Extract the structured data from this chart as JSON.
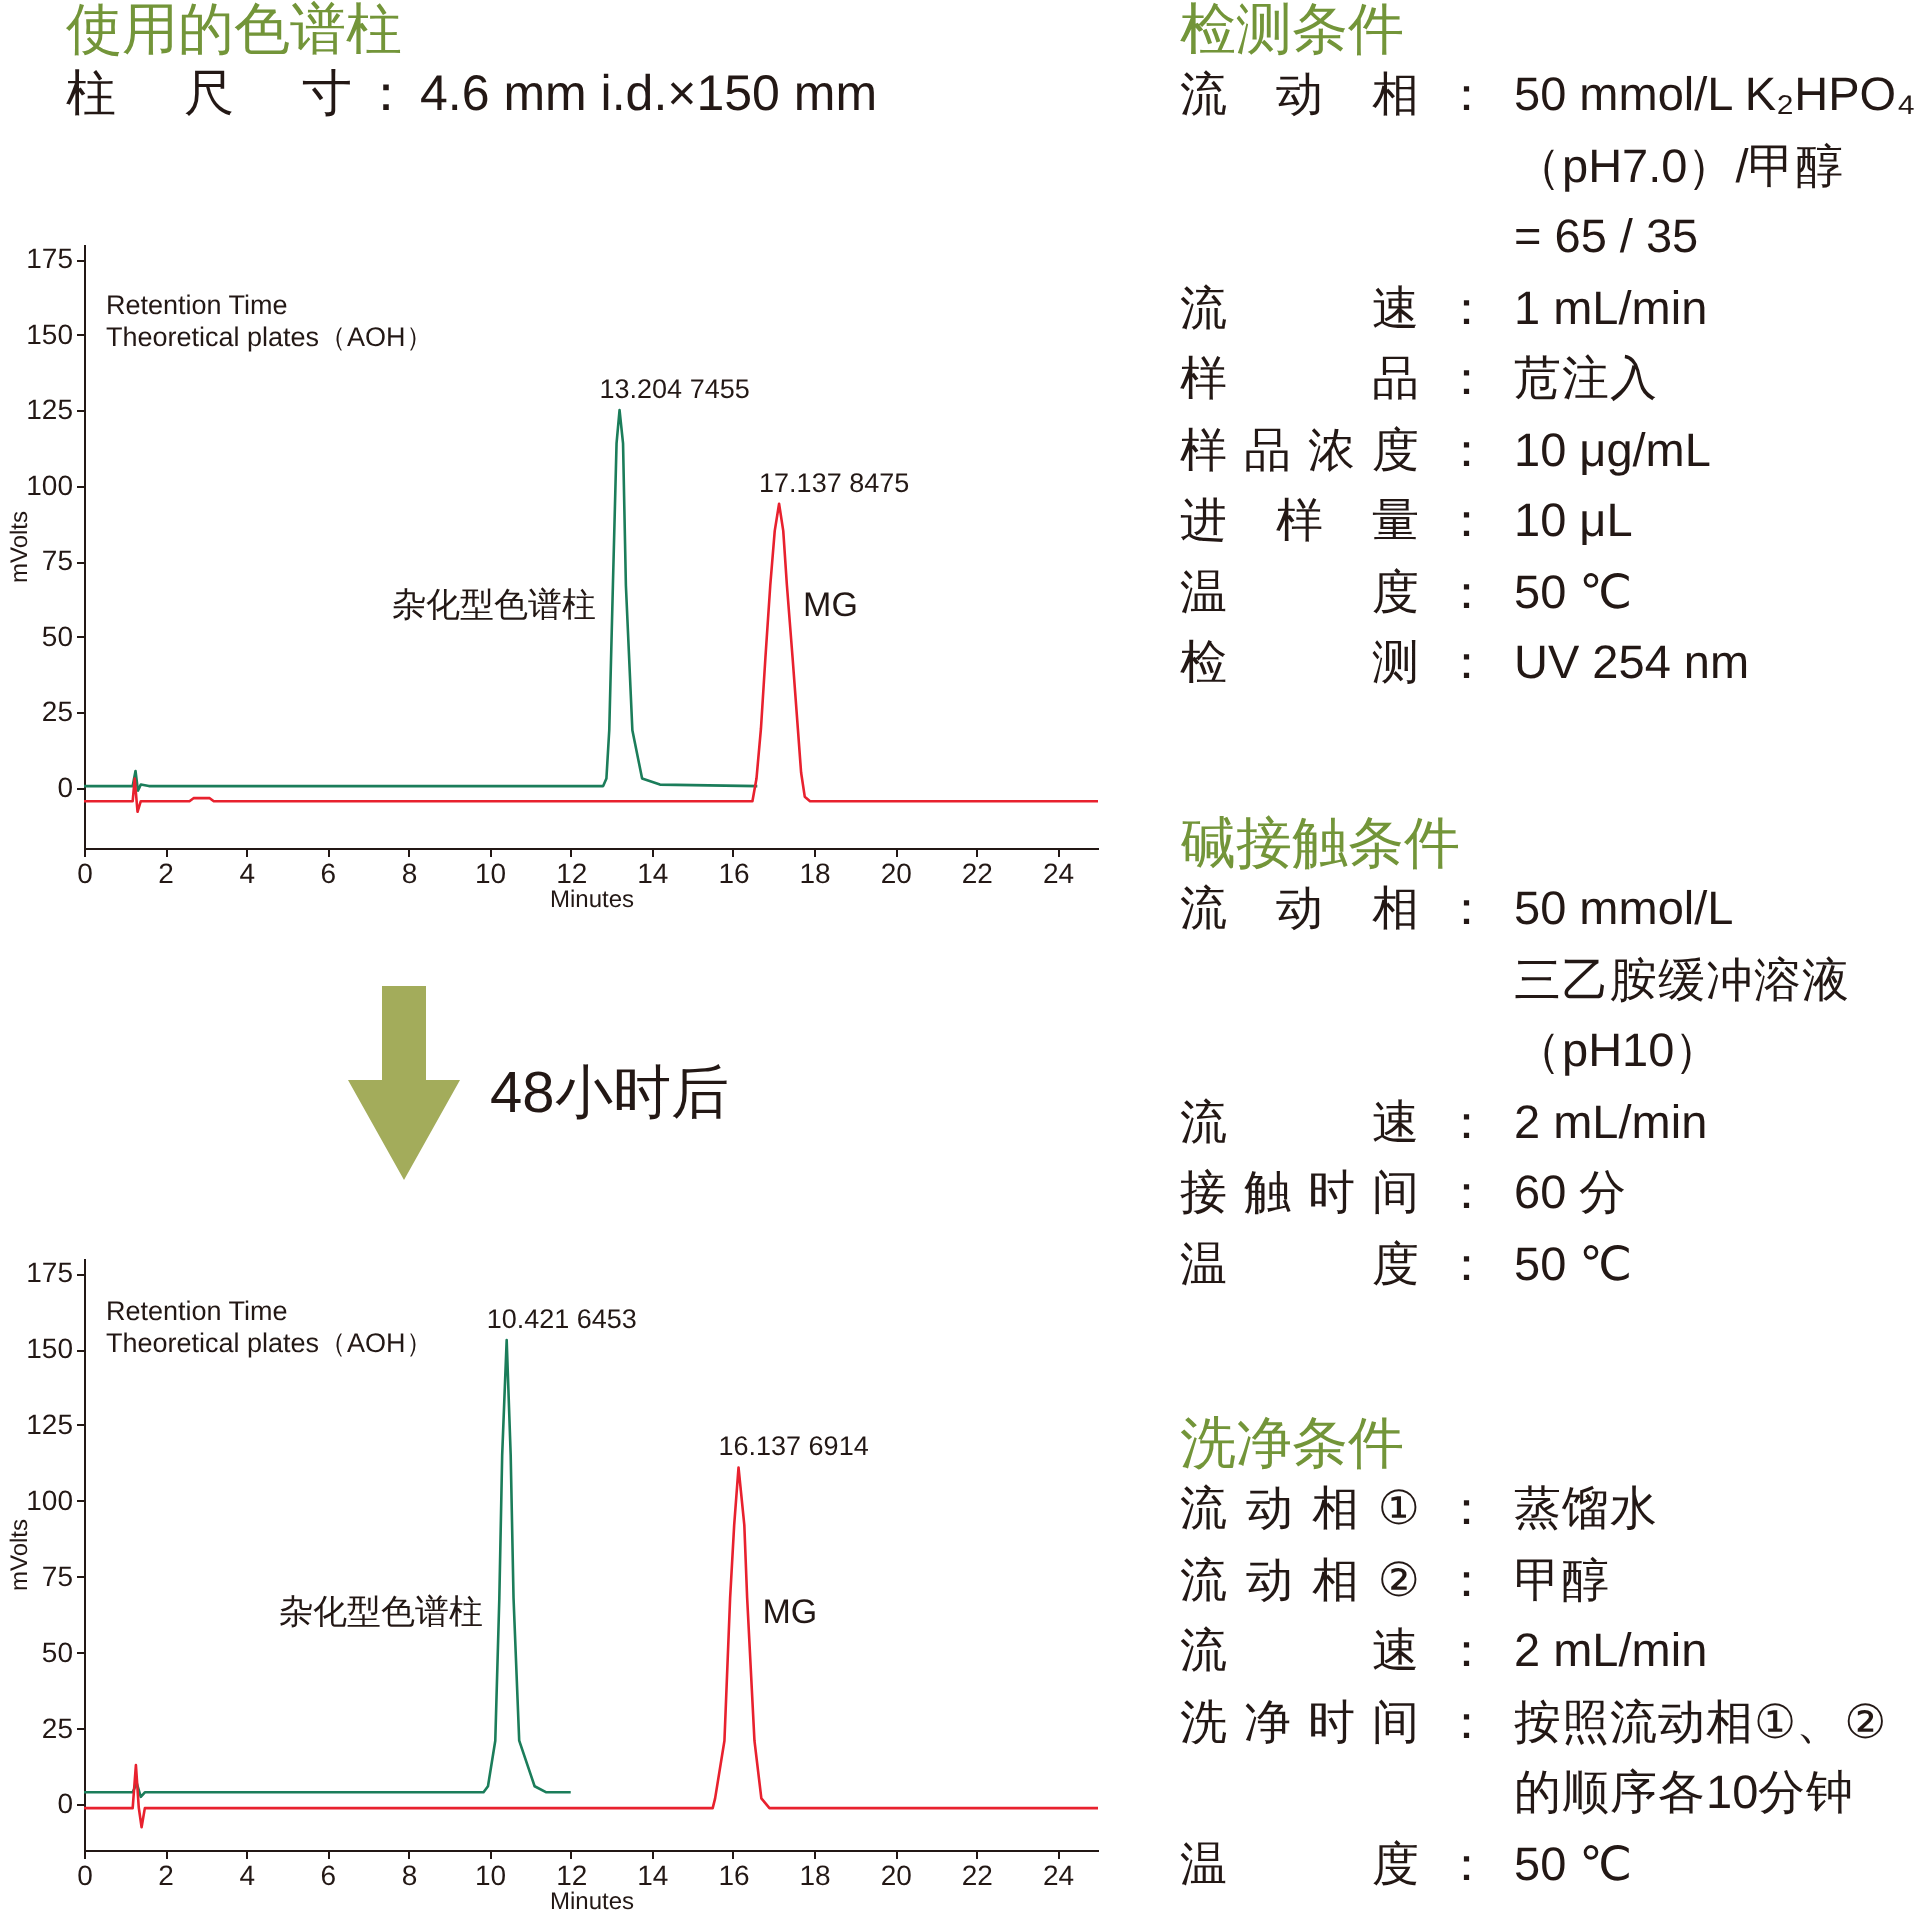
{
  "chart_data": [
    {
      "type": "line",
      "title": "使用的色谱柱",
      "subtitle": "柱尺寸 ： 4.6 mm i.d.×150 mm",
      "xlabel": "Minutes",
      "ylabel": "mVolts",
      "xlim": [
        0,
        25
      ],
      "xticks": [
        0,
        2,
        4,
        6,
        8,
        10,
        12,
        14,
        16,
        18,
        20,
        22,
        24
      ],
      "ylim": [
        -20,
        180
      ],
      "yticks": [
        0,
        25,
        50,
        75,
        100,
        125,
        150,
        175
      ],
      "series": [
        {
          "name": "杂化型色谱柱",
          "color": "#1b7d5a",
          "x": [
            0,
            1.2,
            1.27,
            1.33,
            1.4,
            1.6,
            12.8,
            12.88,
            12.95,
            13.04,
            13.13,
            13.204,
            13.29,
            13.36,
            13.52,
            13.76,
            14.2,
            16.6
          ],
          "values": [
            0.5,
            0.5,
            5.5,
            -1,
            1,
            0.5,
            0.5,
            3,
            19,
            67,
            114,
            125,
            114,
            67,
            19,
            3,
            1,
            0.5
          ]
        },
        {
          "name": "MG",
          "color": "#e8212e",
          "x": [
            0,
            1.2,
            1.25,
            1.32,
            1.4,
            2.6,
            2.7,
            3.1,
            3.2,
            16.48,
            16.58,
            16.69,
            16.8,
            16.92,
            17.03,
            17.137,
            17.24,
            17.33,
            17.47,
            17.6,
            17.68,
            17.77,
            17.9,
            25
          ],
          "values": [
            -4.5,
            -4.5,
            3,
            -8,
            -4.5,
            -4.5,
            -3.5,
            -3.5,
            -4.5,
            -4.5,
            3,
            19.5,
            43,
            67,
            85,
            94,
            85,
            67,
            43,
            19.5,
            5,
            -3,
            -4.5,
            -4.5
          ]
        }
      ],
      "annotations": [
        "Retention Time",
        "Theoretical plates（AOH）",
        {
          "text": "13.204 7455",
          "x": 13.204,
          "y": 125
        },
        {
          "text": "17.137 8475",
          "x": 17.137,
          "y": 94
        }
      ]
    },
    {
      "type": "line",
      "title": "48小时后",
      "xlabel": "Minutes",
      "ylabel": "mVolts",
      "xlim": [
        0,
        25
      ],
      "xticks": [
        0,
        2,
        4,
        6,
        8,
        10,
        12,
        14,
        16,
        18,
        20,
        22,
        24
      ],
      "ylim": [
        -15,
        180
      ],
      "yticks": [
        0,
        25,
        50,
        75,
        100,
        125,
        150,
        175
      ],
      "series": [
        {
          "name": "杂化型色谱柱",
          "color": "#1b7d5a",
          "x": [
            0,
            1.2,
            1.3,
            1.4,
            1.5,
            9.85,
            9.96,
            10.14,
            10.24,
            10.31,
            10.421,
            10.52,
            10.59,
            10.73,
            11.11,
            11.4,
            12
          ],
          "values": [
            4,
            4,
            7,
            2.5,
            4,
            4,
            6,
            21,
            68,
            115,
            153,
            115,
            68,
            21,
            6,
            4,
            4
          ]
        },
        {
          "name": "MG",
          "color": "#e8212e",
          "x": [
            0,
            1.2,
            1.28,
            1.35,
            1.42,
            1.5,
            15.5,
            15.56,
            15.79,
            15.93,
            16.03,
            16.137,
            16.28,
            16.35,
            16.53,
            16.7,
            16.9,
            25
          ],
          "values": [
            -1.2,
            -1.2,
            13,
            -1,
            -7.5,
            -1.2,
            -1.2,
            2,
            21,
            68,
            92,
            111,
            92,
            68,
            21,
            2,
            -1.2,
            -1.2
          ]
        }
      ],
      "annotations": [
        "Retention Time",
        "Theoretical plates（AOH）",
        {
          "text": "10.421 6453",
          "x": 10.421,
          "y": 153
        },
        {
          "text": "16.137 6914",
          "x": 16.137,
          "y": 111
        }
      ]
    },
    {
      "type": "other",
      "title": "检测条件",
      "annotations": [
        "流动相 ： 50 mmol/L K₂HPO₄\n（pH7.0）/甲醇\n= 65 / 35",
        "流速 ： 1 mL/min",
        "样品 ： 苊注入",
        "样品浓度 ： 10 μg/mL",
        "进样量 ： 10 μL",
        "温度 ： 50 ℃",
        "检测 ： UV 254 nm"
      ]
    },
    {
      "type": "other",
      "title": "碱接触条件",
      "annotations": [
        "流动相 ： 50 mmol/L\n三乙胺缓冲溶液（pH10）",
        "流速 ： 2 mL/min",
        "接触时间 ： 60 分",
        "温度 ： 50 ℃"
      ]
    },
    {
      "type": "other",
      "title": "洗净条件",
      "annotations": [
        "流动相① ： 蒸馏水",
        "流动相② ： 甲醇",
        "流速 ： 2 mL/min",
        "洗净时间 ： 按照流动相①、②\n的顺序各10分钟",
        "温度 ： 50 ℃"
      ]
    }
  ]
}
